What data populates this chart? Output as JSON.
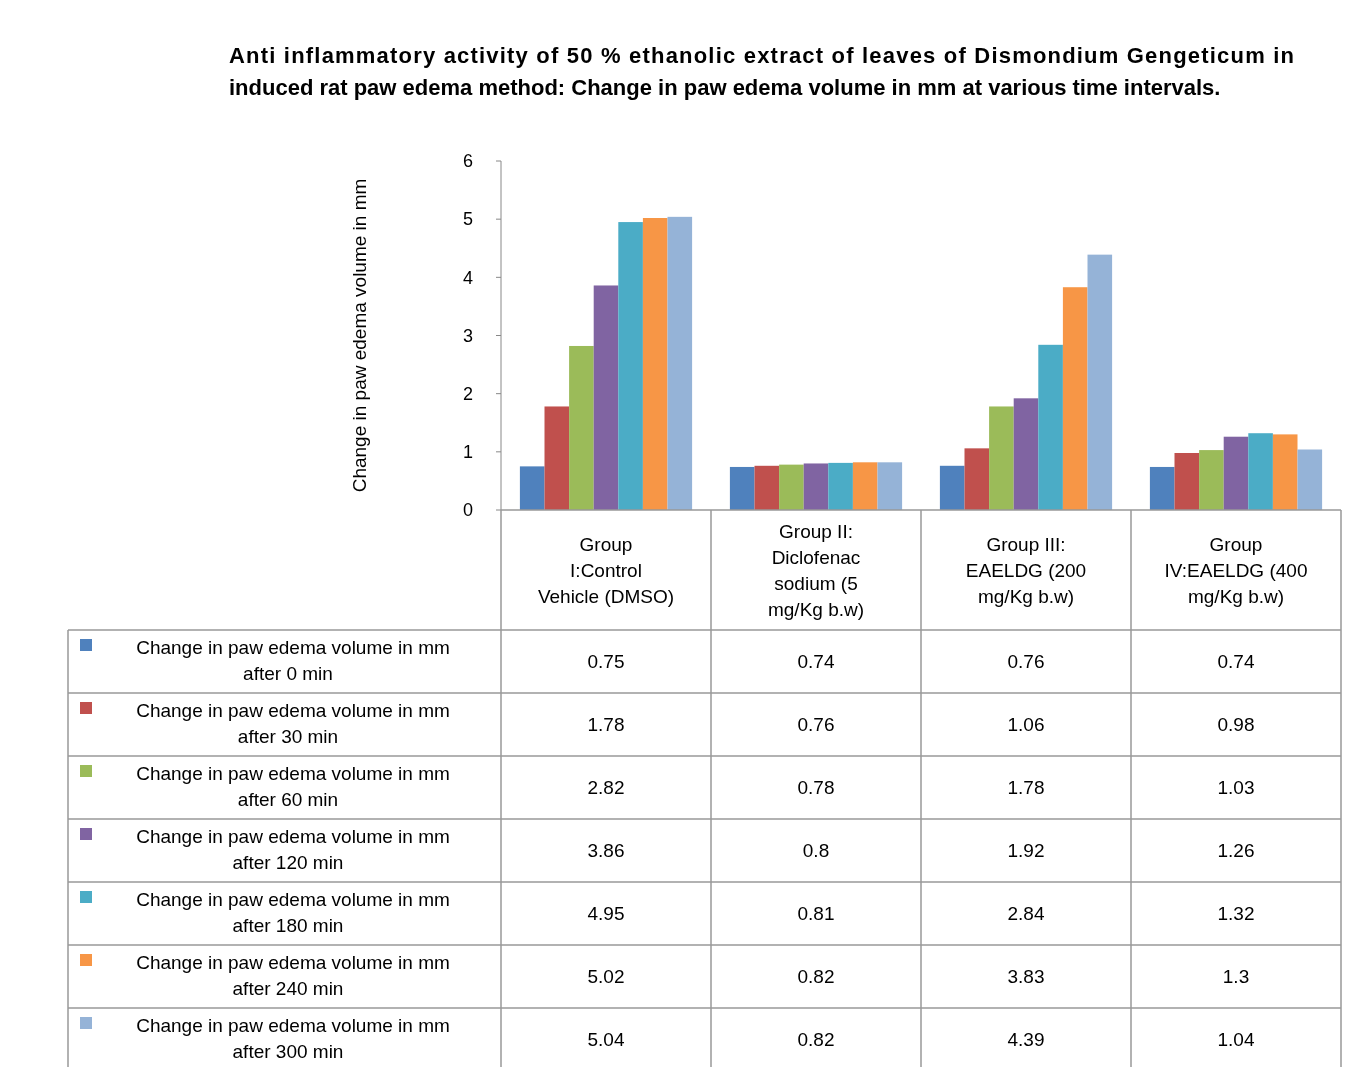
{
  "chart_data": {
    "type": "bar",
    "title": "Anti inflammatory activity of 50 % ethanolic extract of leaves of Dismondium Gengeticum in induced rat paw edema method: Change in paw edema volume in mm at various time intervals.",
    "ylabel": "Change in paw edema volume in mm",
    "categories": [
      "Group I:Control Vehicle (DMSO)",
      "Group II: Diclofenac sodium (5 mg/Kg b.w)",
      "Group III: EAELDG (200 mg/Kg b.w)",
      "Group IV:EAELDG (400 mg/Kg b.w)"
    ],
    "series": [
      {
        "name": "Change in paw edema volume in mm  after 0 min",
        "color": "#4f81bd",
        "values": [
          0.75,
          0.74,
          0.76,
          0.74
        ]
      },
      {
        "name": "Change in paw edema volume in mm  after 30 min",
        "color": "#c0504d",
        "values": [
          1.78,
          0.76,
          1.06,
          0.98
        ]
      },
      {
        "name": "Change in paw edema volume in mm  after 60 min",
        "color": "#9bbb59",
        "values": [
          2.82,
          0.78,
          1.78,
          1.03
        ]
      },
      {
        "name": "Change in paw edema volume in mm  after 120 min",
        "color": "#8064a2",
        "values": [
          3.86,
          0.8,
          1.92,
          1.26
        ]
      },
      {
        "name": "Change in paw edema volume in mm  after 180 min",
        "color": "#4bacc6",
        "values": [
          4.95,
          0.81,
          2.84,
          1.32
        ]
      },
      {
        "name": "Change in paw edema volume in mm  after 240 min",
        "color": "#f79646",
        "values": [
          5.02,
          0.82,
          3.83,
          1.3
        ]
      },
      {
        "name": "Change in paw edema volume in mm  after 300 min",
        "color": "#95b3d7",
        "values": [
          5.04,
          0.82,
          4.39,
          1.04
        ]
      }
    ],
    "ylim": [
      0,
      6
    ],
    "yticks": [
      0,
      1,
      2,
      3,
      4,
      5,
      6
    ],
    "data_labels": true,
    "legend": "bottom"
  }
}
